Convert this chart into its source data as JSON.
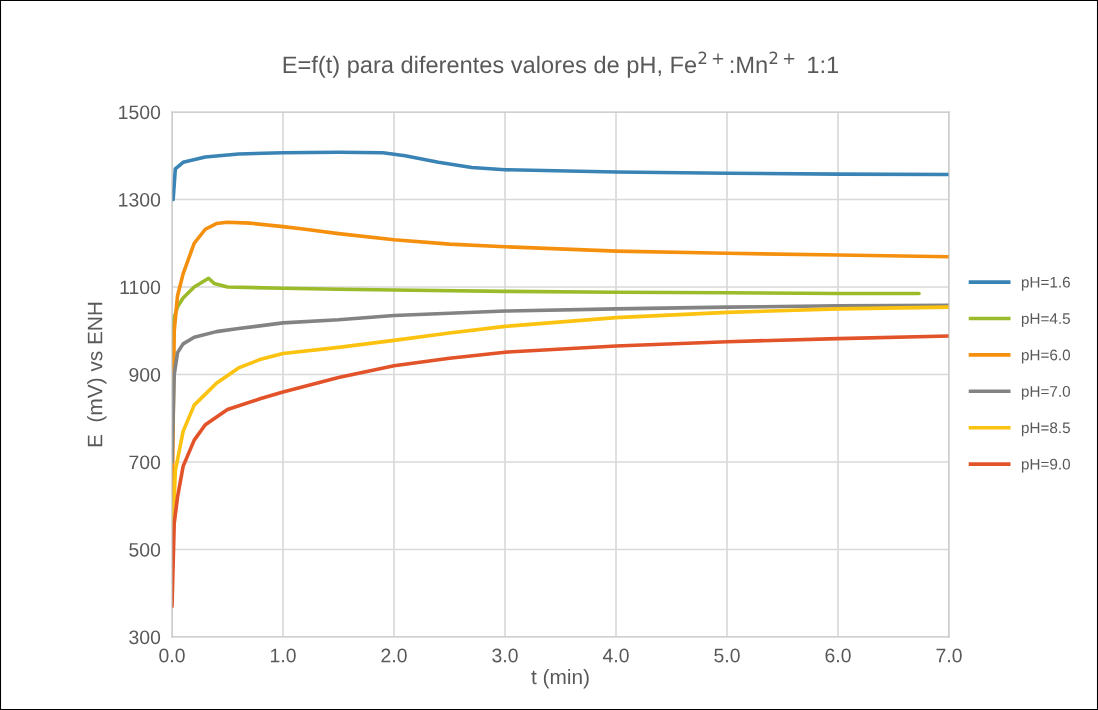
{
  "chart_data": {
    "type": "line",
    "title": "E=f(t) para diferentes valores de pH, Fe$^{2+}$:Mn$^{2+}$ 1:1",
    "xlabel": "t (min)",
    "ylabel": "E  (mV) vs ENH",
    "xlim": [
      0,
      7
    ],
    "xticks": [
      {
        "value": 0,
        "label": "0.0"
      },
      {
        "value": 1,
        "label": "1.0"
      },
      {
        "value": 2,
        "label": "2.0"
      },
      {
        "value": 3,
        "label": "3.0"
      },
      {
        "value": 4,
        "label": "4.0"
      },
      {
        "value": 5,
        "label": "5.0"
      },
      {
        "value": 6,
        "label": "6.0"
      },
      {
        "value": 7,
        "label": "7.0"
      }
    ],
    "ylim": [
      300,
      1500
    ],
    "yticks": [
      300,
      500,
      700,
      900,
      1100,
      1300,
      1500
    ],
    "grid": true,
    "legend": "right",
    "marker": "none",
    "line_style": "solid",
    "series": [
      {
        "name": "pH=1.6",
        "color": "#3a83b5",
        "x": [
          0.01,
          0.03,
          0.1,
          0.3,
          0.6,
          1.0,
          1.5,
          1.9,
          2.1,
          2.4,
          2.7,
          3.0,
          4.0,
          5.0,
          6.0,
          7.0
        ],
        "values": [
          1300,
          1370,
          1385,
          1397,
          1404,
          1407,
          1408,
          1407,
          1400,
          1385,
          1373,
          1368,
          1363,
          1360,
          1358,
          1357
        ]
      },
      {
        "name": "pH=4.5",
        "color": "#9bbb2b",
        "x": [
          0,
          0.02,
          0.05,
          0.1,
          0.2,
          0.33,
          0.38,
          0.5,
          1.0,
          1.5,
          2.0,
          3.0,
          4.0,
          5.0,
          6.0,
          6.73
        ],
        "values": [
          900,
          1030,
          1055,
          1075,
          1100,
          1120,
          1108,
          1100,
          1097,
          1095,
          1093,
          1090,
          1088,
          1087,
          1085,
          1085
        ]
      },
      {
        "name": "pH=6.0",
        "color": "#f5900f",
        "x": [
          0,
          0.02,
          0.05,
          0.1,
          0.2,
          0.3,
          0.4,
          0.5,
          0.7,
          1.0,
          1.2,
          1.5,
          2.0,
          2.5,
          3.0,
          4.0,
          5.0,
          6.0,
          7.0
        ],
        "values": [
          550,
          1000,
          1080,
          1130,
          1200,
          1232,
          1245,
          1248,
          1246,
          1238,
          1232,
          1222,
          1208,
          1198,
          1192,
          1182,
          1177,
          1173,
          1169
        ]
      },
      {
        "name": "pH=7.0",
        "color": "#838383",
        "x": [
          0,
          0.02,
          0.05,
          0.1,
          0.2,
          0.4,
          0.6,
          1.0,
          1.5,
          2.0,
          2.5,
          3.0,
          4.0,
          5.0,
          6.0,
          7.0
        ],
        "values": [
          700,
          900,
          950,
          970,
          985,
          998,
          1005,
          1018,
          1025,
          1035,
          1040,
          1045,
          1050,
          1054,
          1057,
          1058
        ]
      },
      {
        "name": "pH=8.5",
        "color": "#fbc20f",
        "x": [
          0,
          0.03,
          0.1,
          0.2,
          0.4,
          0.6,
          0.8,
          1.0,
          1.5,
          2.0,
          2.5,
          3.0,
          4.0,
          5.0,
          6.0,
          7.0
        ],
        "values": [
          500,
          680,
          770,
          830,
          880,
          915,
          935,
          948,
          962,
          978,
          995,
          1010,
          1030,
          1042,
          1050,
          1054
        ]
      },
      {
        "name": "pH=9.0",
        "color": "#e2532a",
        "x": [
          0,
          0.02,
          0.05,
          0.1,
          0.2,
          0.3,
          0.5,
          0.8,
          1.0,
          1.5,
          2.0,
          2.5,
          3.0,
          4.0,
          5.0,
          6.0,
          7.0
        ],
        "values": [
          370,
          560,
          620,
          690,
          750,
          785,
          820,
          845,
          860,
          893,
          920,
          937,
          951,
          965,
          975,
          982,
          988
        ]
      }
    ]
  }
}
